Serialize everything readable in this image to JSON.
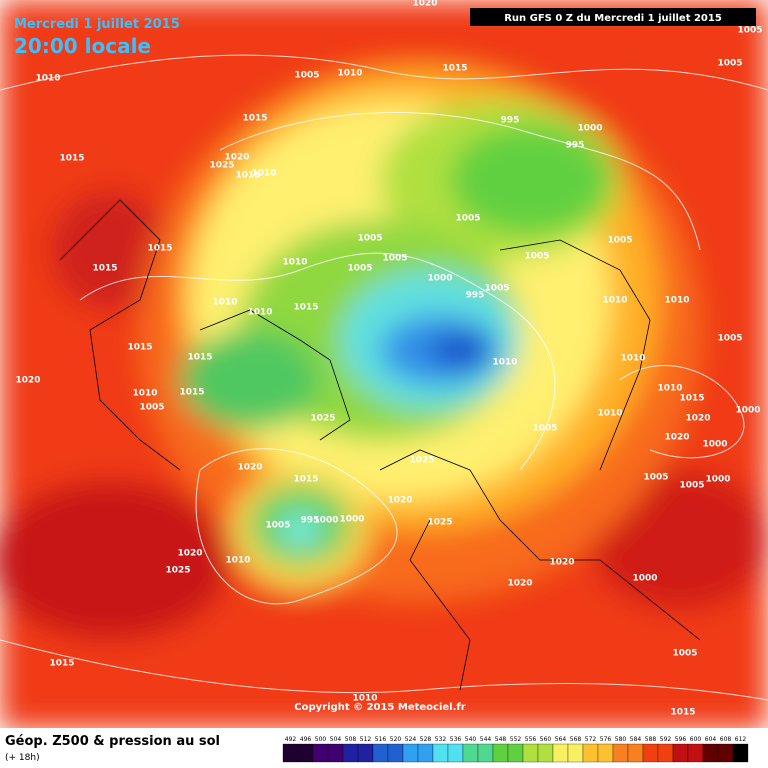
{
  "header": {
    "date": "Mercredi 1 juillet 2015",
    "time": "20:00 locale",
    "run": "Run GFS 0 Z du Mercredi 1 juillet 2015"
  },
  "copyright": "Copyright © 2015 Meteociel.fr",
  "footer": {
    "title": "Géop. Z500 & pression au sol",
    "lead": "(+ 18h)"
  },
  "colorbar": [
    492,
    496,
    500,
    504,
    508,
    512,
    516,
    520,
    524,
    528,
    532,
    536,
    540,
    544,
    548,
    552,
    556,
    560,
    564,
    568,
    572,
    576,
    580,
    584,
    588,
    592,
    596,
    600,
    604,
    608,
    612
  ],
  "isobar_labels": [
    1020,
    1010,
    1005,
    1010,
    1015,
    1005,
    1005,
    995,
    1000,
    995,
    1015,
    1020,
    1025,
    1015,
    1010,
    1015,
    1005,
    1005,
    1005,
    1005,
    1005,
    1005,
    1015,
    1015,
    1010,
    1000,
    995,
    1005,
    1010,
    1010,
    1015,
    1010,
    1010,
    1005,
    1010,
    1015,
    1015,
    1010,
    1020,
    1010,
    1005,
    1015,
    1010,
    1015,
    1010,
    1000,
    1020,
    1025,
    1005,
    1020,
    1000,
    1025,
    1020,
    1015,
    1005,
    1000,
    1005,
    1020,
    1005,
    995,
    1000,
    1000,
    1025,
    1020,
    1010,
    1025,
    1020,
    1020,
    1000,
    1015,
    1005,
    1010,
    1015
  ]
}
